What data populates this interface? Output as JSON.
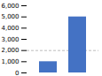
{
  "chart_data": {
    "type": "bar",
    "categories": [
      null,
      null
    ],
    "values": [
      1000,
      5000
    ],
    "color": "#4472C4",
    "ylim": [
      0,
      6000
    ],
    "yticks": [
      0,
      {
        "value": 1000,
        "label": "1,000"
      },
      {
        "value": 2000,
        "label": "2,000"
      },
      {
        "value": 3000,
        "label": "3,000"
      },
      {
        "value": 4000,
        "label": "4,000"
      },
      {
        "value": 5000,
        "label": "5,000"
      },
      {
        "value": 6000,
        "label": "6,000"
      }
    ],
    "reference_line": 2000,
    "tick_labels": "y"
  }
}
